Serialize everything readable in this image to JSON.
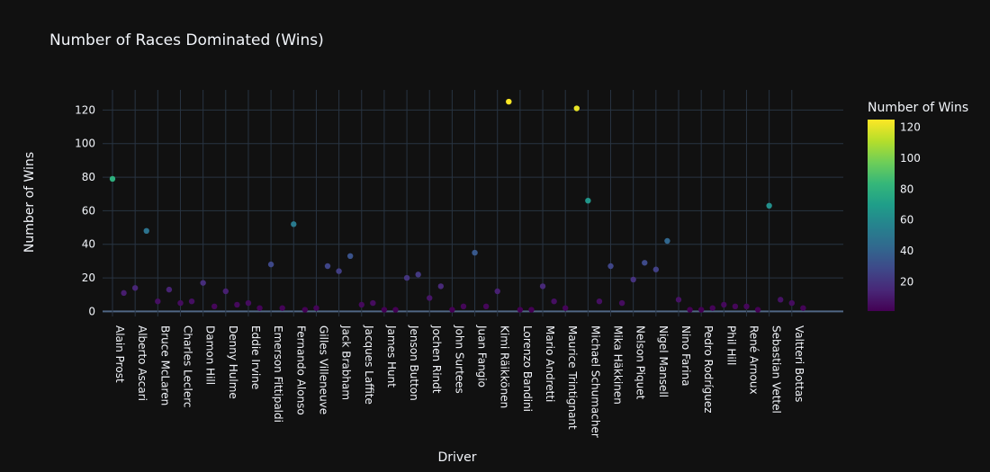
{
  "chart_data": {
    "type": "scatter",
    "title": "Number of Races Dominated (Wins)",
    "xlabel": "Driver",
    "ylabel": "Number of Wins",
    "colorbar_title": "Number of Wins",
    "colorscale": "viridis",
    "colorbar_ticks": [
      20,
      40,
      60,
      80,
      100,
      120
    ],
    "yticks": [
      0,
      20,
      40,
      60,
      80,
      100,
      120
    ],
    "ylim": [
      -3,
      132
    ],
    "color_range": [
      1,
      125
    ],
    "grid": true,
    "legend": "colorbar-right",
    "x": [
      "Alain Prost",
      "",
      "Alberto Ascari",
      "",
      "Bruce McLaren",
      "",
      "Charles Leclerc",
      "",
      "Damon Hill",
      "",
      "Denny Hulme",
      "",
      "Eddie Irvine",
      "",
      "Emerson Fittipaldi",
      "",
      "Fernando Alonso",
      "",
      "Gilles Villeneuve",
      "",
      "Jack Brabham",
      "",
      "Jacques Laffite",
      "",
      "James Hunt",
      "",
      "Jenson Button",
      "",
      "Jochen Rindt",
      "",
      "John Surtees",
      "",
      "Juan Fangio",
      "",
      "Kimi Räikkönen",
      "",
      "Lorenzo Bandini",
      "",
      "Mario Andretti",
      "",
      "Maurice Trintignant",
      "",
      "Michael Schumacher",
      "",
      "Mika Häkkinen",
      "",
      "Nelson Piquet",
      "",
      "Nigel Mansell",
      "",
      "Nino Farina",
      "",
      "Pedro Rodríguez",
      "",
      "Phil Hill",
      "",
      "René Arnoux",
      "",
      "Sebastian Vettel",
      "",
      "Valtteri Bottas",
      ""
    ],
    "values": [
      79,
      11,
      14,
      48,
      6,
      13,
      5,
      6,
      17,
      3,
      12,
      4,
      5,
      2,
      28,
      2,
      52,
      1,
      2,
      27,
      24,
      33,
      4,
      5,
      1,
      1,
      20,
      22,
      8,
      15,
      1,
      3,
      35,
      3,
      12,
      125,
      1,
      1,
      15,
      6,
      2,
      121,
      66,
      6,
      27,
      5,
      19,
      29,
      25,
      42,
      7,
      1,
      1,
      2,
      4,
      3,
      3,
      1,
      63,
      7,
      5,
      2
    ]
  }
}
